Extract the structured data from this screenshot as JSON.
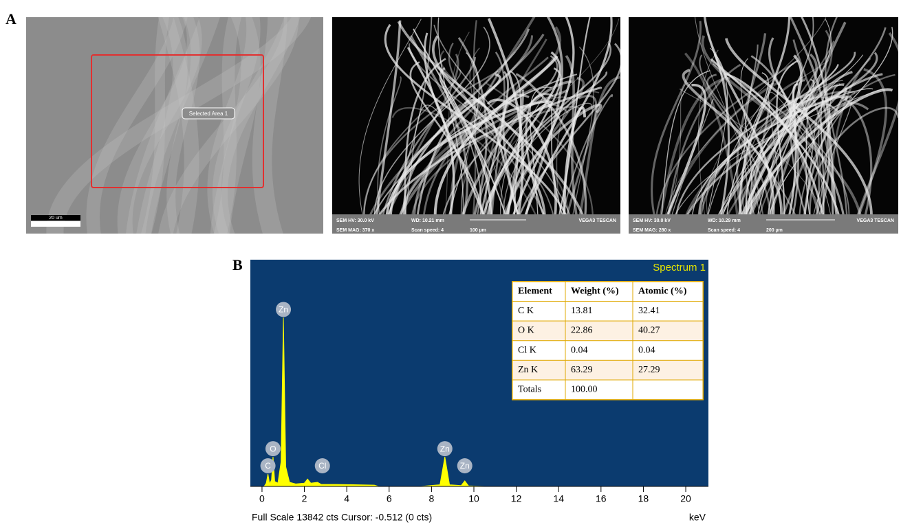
{
  "panel_a": {
    "label": "A",
    "image1": {
      "selection": "Selected Area 1",
      "scale": "20 um"
    },
    "image2": {
      "info": [
        "SEM HV: 30.0 kV",
        "WD: 10.21 mm",
        "VEGA3 TESCAN",
        "SEM MAG: 370 x",
        "Scan speed: 4",
        "100 µm"
      ]
    },
    "image3": {
      "info": [
        "SEM HV: 30.0 kV",
        "WD: 10.29 mm",
        "VEGA3 TESCAN",
        "SEM MAG: 280 x",
        "Scan speed: 4",
        "200 µm"
      ]
    }
  },
  "panel_b": {
    "label": "B"
  },
  "chart_data": {
    "type": "area",
    "title": "Spectrum 1",
    "x_label": "keV",
    "footer": "Full Scale 13842 cts Cursor: -0.512  (0 cts)",
    "color": "#ffff00",
    "x": [
      0.1,
      0.2,
      0.28,
      0.36,
      0.45,
      0.52,
      0.6,
      0.75,
      0.9,
      1.01,
      1.12,
      1.3,
      1.6,
      2.0,
      2.15,
      2.3,
      2.62,
      2.8,
      3.5,
      4.5,
      5.3,
      5.5,
      7.5,
      8.4,
      8.63,
      8.85,
      9.4,
      9.57,
      9.75,
      10.5,
      20
    ],
    "values": [
      0,
      200,
      755,
      150,
      400,
      1800,
      300,
      200,
      1500,
      10300,
      1200,
      250,
      150,
      200,
      450,
      200,
      250,
      120,
      120,
      100,
      80,
      0,
      0,
      100,
      1800,
      100,
      50,
      340,
      30,
      0,
      0
    ],
    "xlim": [
      -0.55,
      21.07
    ],
    "ylim": [
      0,
      13842
    ],
    "xticks": [
      0,
      2,
      4,
      6,
      8,
      10,
      12,
      14,
      16,
      18,
      20
    ],
    "annotations": [
      {
        "text": "Zn",
        "x": 1.01
      },
      {
        "text": "O",
        "x": 0.52
      },
      {
        "text": "C",
        "x": 0.28
      },
      {
        "text": "Cl",
        "x": 2.85
      },
      {
        "text": "Zn",
        "x": 8.63
      },
      {
        "text": "Zn",
        "x": 9.57
      }
    ]
  },
  "table": {
    "header": [
      "Element",
      "Weight (%)",
      "Atomic (%)"
    ],
    "rows": [
      [
        "C K",
        "13.81",
        "32.41"
      ],
      [
        "O K",
        "22.86",
        "40.27"
      ],
      [
        "Cl K",
        "0.04",
        "0.04"
      ],
      [
        "Zn K",
        "63.29",
        "27.29"
      ],
      [
        "Totals",
        "100.00"
      ]
    ]
  }
}
